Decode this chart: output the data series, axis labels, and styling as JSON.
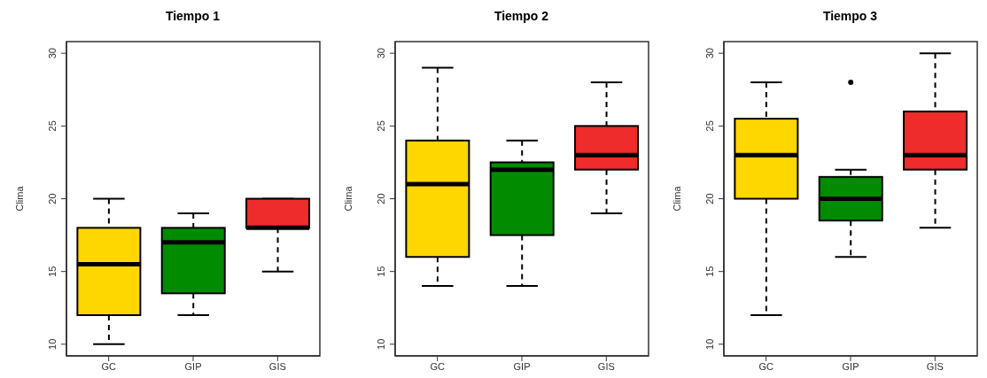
{
  "chart_data": [
    {
      "type": "box",
      "title": "Tiempo 1",
      "ylabel": "Clima",
      "categories": [
        "GC",
        "GIP",
        "GIS"
      ],
      "colors": [
        "#ffd700",
        "#008b00",
        "#ee2c2c"
      ],
      "ylim": [
        9.2,
        30.8
      ],
      "yticks": [
        10,
        15,
        20,
        25,
        30
      ],
      "boxes": [
        {
          "low": 10,
          "q1": 12,
          "median": 15.5,
          "q3": 18,
          "high": 20
        },
        {
          "low": 12,
          "q1": 13.5,
          "median": 17,
          "q3": 18,
          "high": 19
        },
        {
          "low": 15,
          "q1": 18,
          "median": 18,
          "q3": 20,
          "high": 20
        }
      ]
    },
    {
      "type": "box",
      "title": "Tiempo 2",
      "ylabel": "Clima",
      "categories": [
        "GC",
        "GIP",
        "GIS"
      ],
      "colors": [
        "#ffd700",
        "#008b00",
        "#ee2c2c"
      ],
      "ylim": [
        9.2,
        30.8
      ],
      "yticks": [
        10,
        15,
        20,
        25,
        30
      ],
      "boxes": [
        {
          "low": 14,
          "q1": 16,
          "median": 21,
          "q3": 24,
          "high": 29
        },
        {
          "low": 14,
          "q1": 17.5,
          "median": 22,
          "q3": 22.5,
          "high": 24
        },
        {
          "low": 19,
          "q1": 22,
          "median": 23,
          "q3": 25,
          "high": 28
        }
      ]
    },
    {
      "type": "box",
      "title": "Tiempo 3",
      "ylabel": "Clima",
      "categories": [
        "GC",
        "GIP",
        "GIS"
      ],
      "colors": [
        "#ffd700",
        "#008b00",
        "#ee2c2c"
      ],
      "ylim": [
        9.2,
        30.8
      ],
      "yticks": [
        10,
        15,
        20,
        25,
        30
      ],
      "boxes": [
        {
          "low": 12,
          "q1": 20,
          "median": 23,
          "q3": 25.5,
          "high": 28
        },
        {
          "low": 16,
          "q1": 18.5,
          "median": 20,
          "q3": 21.5,
          "high": 22,
          "outliers": [
            28
          ]
        },
        {
          "low": 18,
          "q1": 22,
          "median": 23,
          "q3": 26,
          "high": 30
        }
      ]
    }
  ]
}
